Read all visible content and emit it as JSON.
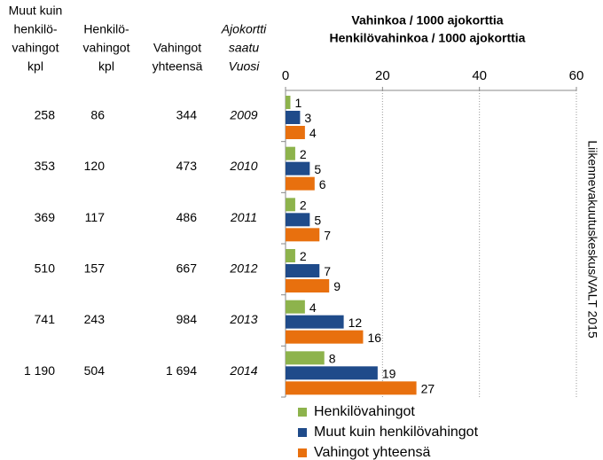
{
  "table": {
    "headers": [
      [
        "Muut kuin",
        "henkilö-",
        "vahingot",
        "kpl"
      ],
      [
        "Henkilö-",
        "vahingot",
        "kpl"
      ],
      [
        "Vahingot",
        "yhteensä"
      ],
      [
        "Ajokortti",
        "saatu",
        "Vuosi"
      ]
    ],
    "rows": [
      [
        "258",
        "86",
        "344"
      ],
      [
        "353",
        "120",
        "473"
      ],
      [
        "369",
        "117",
        "486"
      ],
      [
        "510",
        "157",
        "667"
      ],
      [
        "741",
        "243",
        "984"
      ],
      [
        "1 190",
        "504",
        "1 694"
      ]
    ]
  },
  "chart_data": {
    "type": "hbar",
    "title": "Vahinkoa / 1000 ajokorttia",
    "subtitle": "Henkilövahinkoa / 1000 ajokorttia",
    "source": "Liikennevakuutuskeskus/VALT 2015",
    "categories": [
      "2009",
      "2010",
      "2011",
      "2012",
      "2013",
      "2014"
    ],
    "series": [
      {
        "name": "Henkilövahingot",
        "color": "#8db34c",
        "values": [
          1,
          2,
          2,
          2,
          4,
          8
        ]
      },
      {
        "name": "Muut kuin henkilövahingot",
        "color": "#1f4b8a",
        "values": [
          3,
          5,
          5,
          7,
          12,
          19
        ]
      },
      {
        "name": "Vahingot yhteensä",
        "color": "#e8700e",
        "values": [
          4,
          6,
          7,
          9,
          16,
          27
        ]
      }
    ],
    "xlim": [
      0,
      60
    ],
    "xticks": [
      0,
      20,
      40,
      60
    ],
    "grid": true
  }
}
